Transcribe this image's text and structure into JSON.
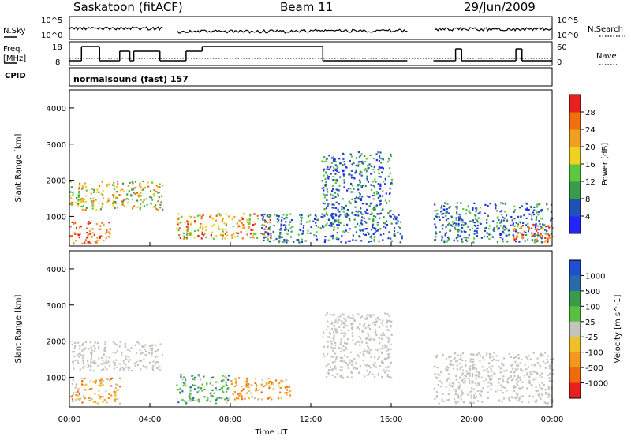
{
  "header": {
    "title_left": "Saskatoon (fitACF)",
    "title_center": "Beam 11",
    "title_right": "29/Jun/2009"
  },
  "left_labels": {
    "nsky": "N.Sky",
    "freq_line1": "Freq.",
    "freq_line2": "[MHz]",
    "cpid": "CPID"
  },
  "right_labels": {
    "nsearch": "N.Search",
    "nave": "Nave"
  },
  "noise_axis": {
    "top": "10^5",
    "bottom": "10^0"
  },
  "nsearch_axis": {
    "top": "10^5",
    "bottom": "10^0"
  },
  "freq_axis": {
    "top": "18",
    "bottom": "8"
  },
  "nave_axis": {
    "top": "60",
    "bottom": "0"
  },
  "cpid_text": "normalsound (fast) 157",
  "x_axis": {
    "label": "Time UT",
    "ticks": [
      "00:00",
      "04:00",
      "08:00",
      "12:00",
      "16:00",
      "20:00",
      "00:00"
    ]
  },
  "y_axis": {
    "label": "Slant Range [km]",
    "ticks": [
      "1000",
      "2000",
      "3000",
      "4000"
    ]
  },
  "power_colorbar": {
    "label": "Power [dB]",
    "ticks": [
      "4",
      "8",
      "12",
      "16",
      "20",
      "24",
      "28"
    ],
    "colors": [
      "#2424ff",
      "#2050b8",
      "#3a9c4a",
      "#5cc840",
      "#f0d020",
      "#f0a020",
      "#f07010",
      "#e82020"
    ]
  },
  "velocity_colorbar": {
    "label": "Velocity [m s^-1]",
    "ticks": [
      "1000",
      "500",
      "100",
      "25",
      "-25",
      "-100",
      "-500",
      "-1000"
    ],
    "colors": [
      "#2050d0",
      "#2a6aa8",
      "#3a9a4a",
      "#58c040",
      "#c4c4bc",
      "#f0c028",
      "#f09820",
      "#f06a10",
      "#e82020"
    ]
  },
  "chart_data": {
    "type": "heatmap",
    "xlabel": "Time UT",
    "ylabel": "Slant Range [km]",
    "x_range_hours": [
      0,
      24
    ],
    "y_range_km": [
      180,
      4500
    ],
    "data_gaps_hours": [
      [
        4.7,
        5.3
      ],
      [
        16.8,
        18.1
      ]
    ],
    "power_regions": [
      {
        "t0": 0.0,
        "t1": 2.0,
        "r0": 250,
        "r1": 900,
        "level": "high"
      },
      {
        "t0": 0.0,
        "t1": 4.6,
        "r0": 1200,
        "r1": 2000,
        "level": "medium"
      },
      {
        "t0": 5.3,
        "t1": 10.0,
        "r0": 400,
        "r1": 1100,
        "level": "medium-high"
      },
      {
        "t0": 9.5,
        "t1": 16.5,
        "r0": 300,
        "r1": 1100,
        "level": "low-medium"
      },
      {
        "t0": 12.5,
        "t1": 16.0,
        "r0": 1000,
        "r1": 2800,
        "level": "low-medium"
      },
      {
        "t0": 18.1,
        "t1": 24.0,
        "r0": 300,
        "r1": 1400,
        "level": "low-medium"
      },
      {
        "t0": 22.0,
        "t1": 24.0,
        "r0": 300,
        "r1": 800,
        "level": "high"
      }
    ],
    "velocity_regions": [
      {
        "t0": 0.0,
        "t1": 4.6,
        "r0": 1200,
        "r1": 2000,
        "vel": "~0 (ground scatter)"
      },
      {
        "t0": 0.0,
        "t1": 2.5,
        "r0": 300,
        "r1": 1000,
        "vel": "-100 to -500"
      },
      {
        "t0": 5.3,
        "t1": 8.0,
        "r0": 300,
        "r1": 1100,
        "vel": "+100 to +500"
      },
      {
        "t0": 8.0,
        "t1": 11.0,
        "r0": 400,
        "r1": 1000,
        "vel": "-100 to -500"
      },
      {
        "t0": 12.5,
        "t1": 16.0,
        "r0": 1000,
        "r1": 2800,
        "vel": "~0 (ground scatter)"
      },
      {
        "t0": 18.1,
        "t1": 24.0,
        "r0": 300,
        "r1": 1700,
        "vel": "~0 (ground scatter)"
      }
    ],
    "frequency_mhz": [
      {
        "t0": 0.0,
        "t1": 0.6,
        "f": 10
      },
      {
        "t0": 0.6,
        "t1": 1.5,
        "f": 16
      },
      {
        "t0": 1.5,
        "t1": 2.5,
        "f": 10
      },
      {
        "t0": 2.5,
        "t1": 3.0,
        "f": 14
      },
      {
        "t0": 3.0,
        "t1": 3.2,
        "f": 10
      },
      {
        "t0": 3.2,
        "t1": 4.5,
        "f": 14
      },
      {
        "t0": 4.5,
        "t1": 5.8,
        "f": 10
      },
      {
        "t0": 5.8,
        "t1": 6.6,
        "f": 14
      },
      {
        "t0": 6.6,
        "t1": 12.6,
        "f": 16
      },
      {
        "t0": 12.6,
        "t1": 16.8,
        "f": 10
      },
      {
        "t0": 18.1,
        "t1": 19.2,
        "f": 10
      },
      {
        "t0": 19.2,
        "t1": 19.5,
        "f": 15
      },
      {
        "t0": 19.5,
        "t1": 22.2,
        "f": 10
      },
      {
        "t0": 22.2,
        "t1": 22.5,
        "f": 15
      },
      {
        "t0": 22.5,
        "t1": 24.0,
        "f": 10
      }
    ]
  }
}
